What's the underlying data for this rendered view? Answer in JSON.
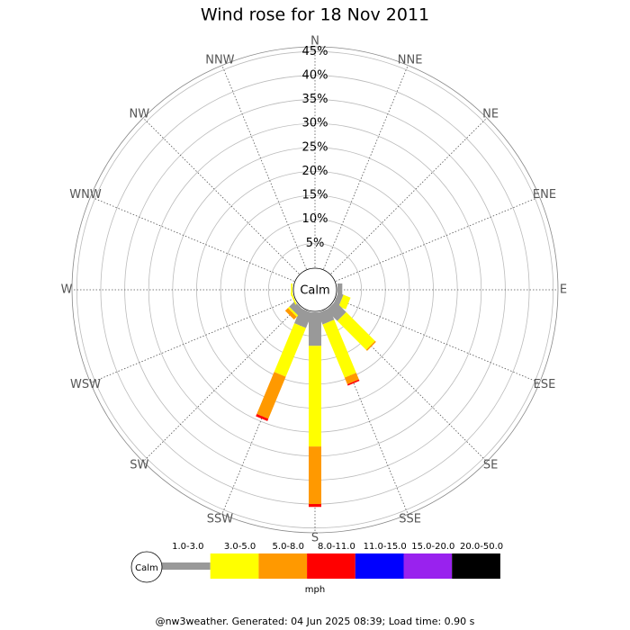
{
  "chart_data": {
    "type": "windrose",
    "title": "Wind rose for 18 Nov 2011",
    "directions": [
      "N",
      "NNE",
      "NE",
      "ENE",
      "E",
      "ESE",
      "SE",
      "SSE",
      "S",
      "SSW",
      "SW",
      "WSW",
      "W",
      "WNW",
      "NW",
      "NNW"
    ],
    "calm_label": "Calm",
    "rlim": [
      0,
      46
    ],
    "rticks": [
      {
        "value": 5,
        "label": "5%"
      },
      {
        "value": 10,
        "label": "10%"
      },
      {
        "value": 15,
        "label": "15%"
      },
      {
        "value": 20,
        "label": "20%"
      },
      {
        "value": 25,
        "label": "25%"
      },
      {
        "value": 30,
        "label": "30%"
      },
      {
        "value": 35,
        "label": "35%"
      },
      {
        "value": 40,
        "label": "40%"
      },
      {
        "value": 45,
        "label": "45%"
      }
    ],
    "series": [
      {
        "name": "1.0-3.0",
        "color": "#999999",
        "values": [
          0,
          0,
          0,
          0,
          1,
          1.2,
          3.2,
          2.6,
          7,
          3.4,
          1.6,
          0,
          0,
          0,
          0,
          0
        ]
      },
      {
        "name": "3.0-5.0",
        "color": "#ffff00",
        "values": [
          0,
          0,
          0,
          0,
          0,
          1.6,
          8.5,
          12,
          21,
          11,
          0.4,
          0.3,
          0.3,
          0,
          0,
          0
        ]
      },
      {
        "name": "5.0-8.0",
        "color": "#ff9900",
        "values": [
          0,
          0,
          0,
          0,
          0,
          0,
          0.3,
          1.5,
          12,
          9.5,
          0.8,
          0,
          0,
          0,
          0,
          0
        ]
      },
      {
        "name": "8.0-11.0",
        "color": "#ff0000",
        "values": [
          0,
          0,
          0,
          0,
          0,
          0,
          0,
          0.3,
          0.6,
          0.5,
          0,
          0,
          0,
          0,
          0,
          0
        ]
      },
      {
        "name": "11.0-15.0",
        "color": "#0000ff",
        "values": [
          0,
          0,
          0,
          0,
          0,
          0,
          0,
          0,
          0,
          0,
          0,
          0,
          0,
          0,
          0,
          0
        ]
      },
      {
        "name": "15.0-20.0",
        "color": "#9922ee",
        "values": [
          0,
          0,
          0,
          0,
          0,
          0,
          0,
          0,
          0,
          0,
          0,
          0,
          0,
          0,
          0,
          0
        ]
      },
      {
        "name": "20.0-50.0",
        "color": "#000000",
        "values": [
          0,
          0,
          0,
          0,
          0,
          0,
          0,
          0,
          0,
          0,
          0,
          0,
          0,
          0,
          0,
          0
        ]
      }
    ],
    "unit": "mph",
    "footer": "@nw3weather. Generated: 04 Jun 2025 08:39; Load time: 0.90 s"
  }
}
